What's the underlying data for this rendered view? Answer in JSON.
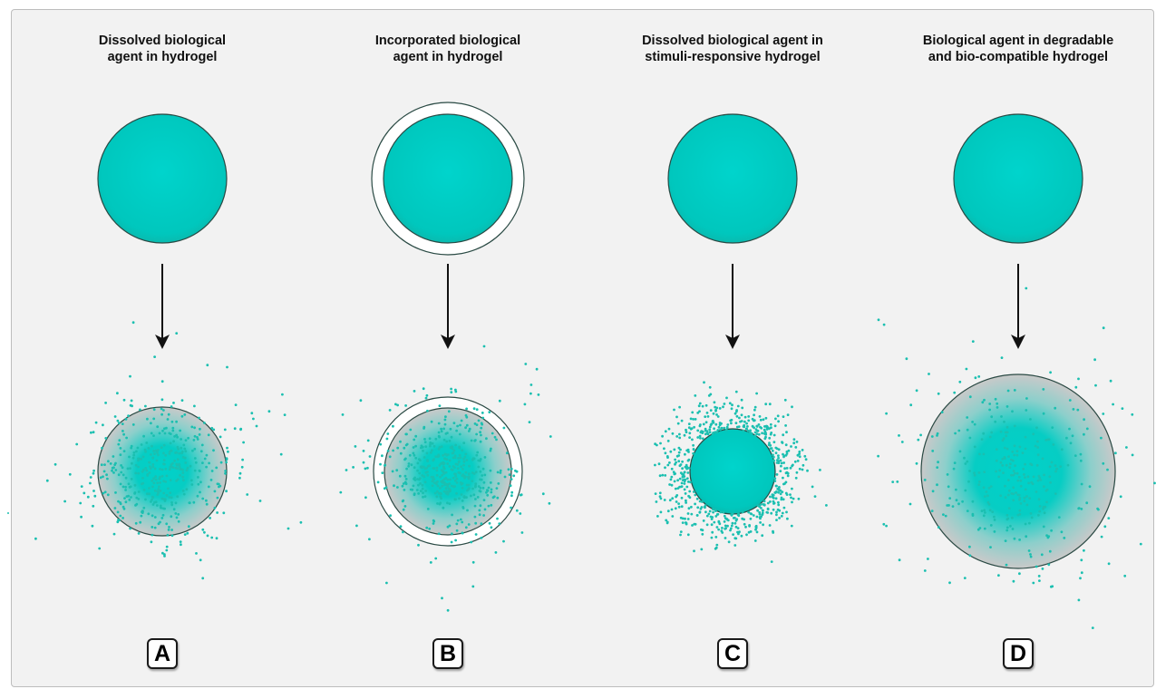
{
  "figure": {
    "colors": {
      "teal": "#00cfc8",
      "teal_dark": "#0fa89a",
      "dot": "#1bbfb0",
      "outline": "#2a4a44",
      "background": "#f2f2f2"
    },
    "panels": [
      {
        "id": "A",
        "title": "Dissolved biological\nagent in hydrogel",
        "variant": "dissolved"
      },
      {
        "id": "B",
        "title": "Incorporated biological\nagent in hydrogel",
        "variant": "incorporated"
      },
      {
        "id": "C",
        "title": "Dissolved biological agent in\nstimuli-responsive hydrogel",
        "variant": "stimuli"
      },
      {
        "id": "D",
        "title": "Biological agent in degradable\nand bio-compatible hydrogel",
        "variant": "degradable"
      }
    ]
  }
}
